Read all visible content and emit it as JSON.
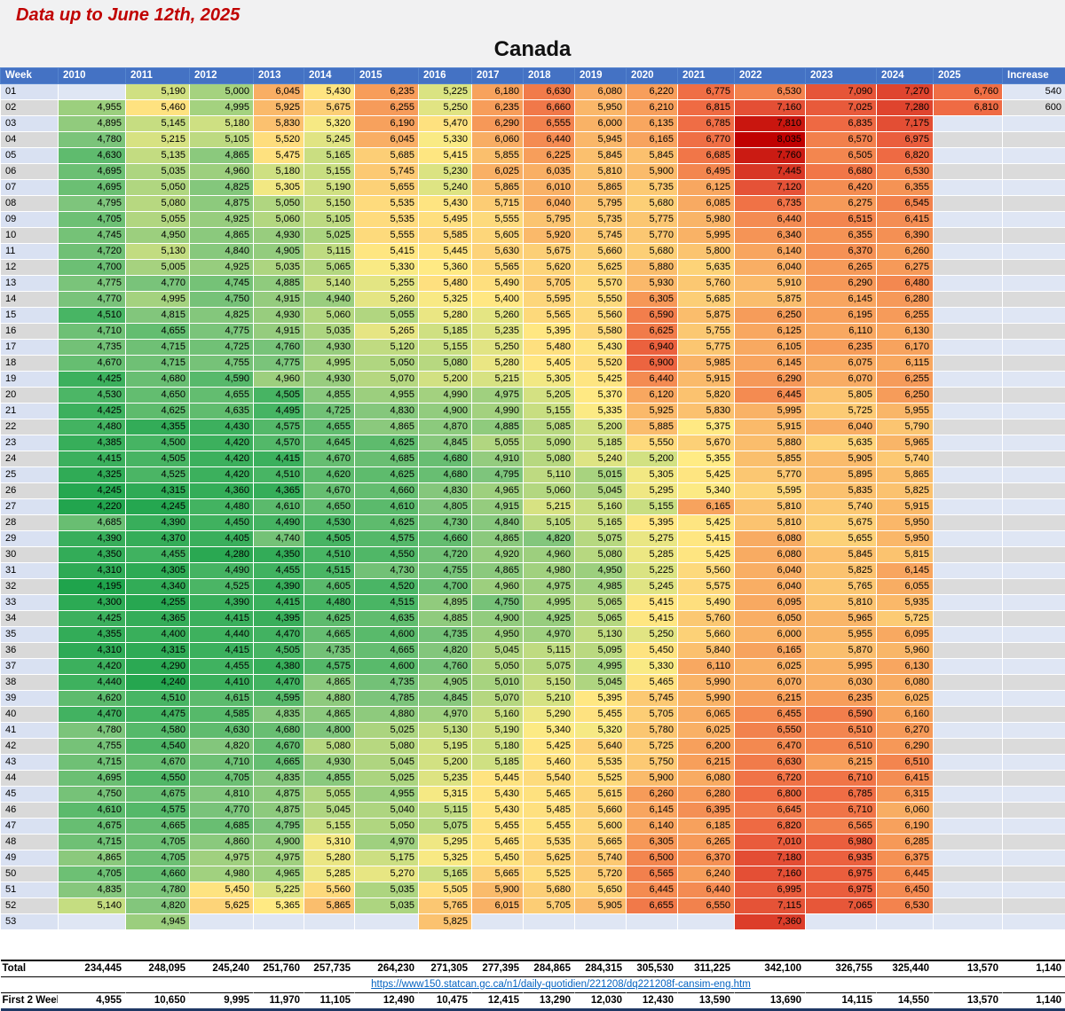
{
  "header": {
    "note": "Data up to June 12th, 2025",
    "title": "Canada"
  },
  "source_link": {
    "text": "https://www150.statcan.gc.ca/n1/daily-quotidien/221208/dq221208f-cansim-eng.htm"
  },
  "colors": {
    "header_bg": "#4472C4",
    "header_text": "#FFFFFF",
    "note_text": "#C00000",
    "week_odd_bg": "#D9E1F2",
    "week_even_bg": "#D9D9D9",
    "blank_odd_bg": "#DFE6F4",
    "blank_even_bg": "#DBDBDB",
    "link_text": "#0563C1",
    "bottom_border": "#1F3864"
  },
  "chart_data": {
    "type": "heatmap",
    "title": "Canada",
    "note": "Data up to June 12th, 2025",
    "legend_position": "none",
    "grid": true,
    "columns": [
      "Week",
      "2010",
      "2011",
      "2012",
      "2013",
      "2014",
      "2015",
      "2016",
      "2017",
      "2018",
      "2019",
      "2020",
      "2021",
      "2022",
      "2023",
      "2024",
      "2025",
      "Increase"
    ],
    "weeks": [
      "01",
      "02",
      "03",
      "04",
      "05",
      "06",
      "07",
      "08",
      "09",
      "10",
      "11",
      "12",
      "13",
      "14",
      "15",
      "16",
      "17",
      "18",
      "19",
      "20",
      "21",
      "22",
      "23",
      "24",
      "25",
      "26",
      "27",
      "28",
      "29",
      "30",
      "31",
      "32",
      "33",
      "34",
      "35",
      "36",
      "37",
      "38",
      "39",
      "40",
      "41",
      "42",
      "43",
      "44",
      "45",
      "46",
      "47",
      "48",
      "49",
      "50",
      "51",
      "52",
      "53"
    ],
    "rows": [
      [
        null,
        5190,
        5000,
        6045,
        5430,
        6235,
        5225,
        6180,
        6630,
        6080,
        6220,
        6775,
        6530,
        7090,
        7270,
        6760,
        540
      ],
      [
        4955,
        5460,
        4995,
        5925,
        5675,
        6255,
        5250,
        6235,
        6660,
        5950,
        6210,
        6815,
        7160,
        7025,
        7280,
        6810,
        600
      ],
      [
        4895,
        5145,
        5180,
        5830,
        5320,
        6190,
        5470,
        6290,
        6555,
        6000,
        6135,
        6785,
        7810,
        6835,
        7175,
        null,
        null
      ],
      [
        4780,
        5215,
        5105,
        5520,
        5245,
        6045,
        5330,
        6060,
        6440,
        5945,
        6165,
        6770,
        8035,
        6570,
        6975,
        null,
        null
      ],
      [
        4630,
        5135,
        4865,
        5475,
        5165,
        5685,
        5415,
        5855,
        6225,
        5845,
        5845,
        6685,
        7760,
        6505,
        6820,
        null,
        null
      ],
      [
        4695,
        5035,
        4960,
        5180,
        5155,
        5745,
        5230,
        6025,
        6035,
        5810,
        5900,
        6495,
        7445,
        6680,
        6530,
        null,
        null
      ],
      [
        4695,
        5050,
        4825,
        5305,
        5190,
        5655,
        5240,
        5865,
        6010,
        5865,
        5735,
        6125,
        7120,
        6420,
        6355,
        null,
        null
      ],
      [
        4795,
        5080,
        4875,
        5050,
        5150,
        5535,
        5430,
        5715,
        6040,
        5795,
        5680,
        6085,
        6735,
        6275,
        6545,
        null,
        null
      ],
      [
        4705,
        5055,
        4925,
        5060,
        5105,
        5535,
        5495,
        5555,
        5795,
        5735,
        5775,
        5980,
        6440,
        6515,
        6415,
        null,
        null
      ],
      [
        4745,
        4950,
        4865,
        4930,
        5025,
        5555,
        5585,
        5605,
        5920,
        5745,
        5770,
        5995,
        6340,
        6355,
        6390,
        null,
        null
      ],
      [
        4720,
        5130,
        4840,
        4905,
        5115,
        5415,
        5445,
        5630,
        5675,
        5660,
        5680,
        5800,
        6140,
        6370,
        6260,
        null,
        null
      ],
      [
        4700,
        5005,
        4925,
        5035,
        5065,
        5330,
        5360,
        5565,
        5620,
        5625,
        5880,
        5635,
        6040,
        6265,
        6275,
        null,
        null
      ],
      [
        4775,
        4770,
        4745,
        4885,
        5140,
        5255,
        5480,
        5490,
        5705,
        5570,
        5930,
        5760,
        5910,
        6290,
        6480,
        null,
        null
      ],
      [
        4770,
        4995,
        4750,
        4915,
        4940,
        5260,
        5325,
        5400,
        5595,
        5550,
        6305,
        5685,
        5875,
        6145,
        6280,
        null,
        null
      ],
      [
        4510,
        4815,
        4825,
        4930,
        5060,
        5055,
        5280,
        5260,
        5565,
        5560,
        6590,
        5875,
        6250,
        6195,
        6255,
        null,
        null
      ],
      [
        4710,
        4655,
        4775,
        4915,
        5035,
        5265,
        5185,
        5235,
        5395,
        5580,
        6625,
        5755,
        6125,
        6110,
        6130,
        null,
        null
      ],
      [
        4735,
        4715,
        4725,
        4760,
        4930,
        5120,
        5155,
        5250,
        5480,
        5430,
        6940,
        5775,
        6105,
        6235,
        6170,
        null,
        null
      ],
      [
        4670,
        4715,
        4755,
        4775,
        4995,
        5050,
        5080,
        5280,
        5405,
        5520,
        6900,
        5985,
        6145,
        6075,
        6115,
        null,
        null
      ],
      [
        4425,
        4680,
        4590,
        4960,
        4930,
        5070,
        5200,
        5215,
        5305,
        5425,
        6440,
        5915,
        6290,
        6070,
        6255,
        null,
        null
      ],
      [
        4530,
        4650,
        4655,
        4505,
        4855,
        4955,
        4990,
        4975,
        5205,
        5370,
        6120,
        5820,
        6445,
        5805,
        6250,
        null,
        null
      ],
      [
        4425,
        4625,
        4635,
        4495,
        4725,
        4830,
        4900,
        4990,
        5155,
        5335,
        5925,
        5830,
        5995,
        5725,
        5955,
        null,
        null
      ],
      [
        4480,
        4355,
        4430,
        4575,
        4655,
        4865,
        4870,
        4885,
        5085,
        5200,
        5885,
        5375,
        5915,
        6040,
        5790,
        null,
        null
      ],
      [
        4385,
        4500,
        4420,
        4570,
        4645,
        4625,
        4845,
        5055,
        5090,
        5185,
        5550,
        5670,
        5880,
        5635,
        5965,
        null,
        null
      ],
      [
        4415,
        4505,
        4420,
        4415,
        4670,
        4685,
        4680,
        4910,
        5080,
        5240,
        5200,
        5355,
        5855,
        5905,
        5740,
        null,
        null
      ],
      [
        4325,
        4525,
        4420,
        4510,
        4620,
        4625,
        4680,
        4795,
        5110,
        5015,
        5305,
        5425,
        5770,
        5895,
        5865,
        null,
        null
      ],
      [
        4245,
        4315,
        4360,
        4365,
        4670,
        4660,
        4830,
        4965,
        5060,
        5045,
        5295,
        5340,
        5595,
        5835,
        5825,
        null,
        null
      ],
      [
        4220,
        4245,
        4480,
        4610,
        4650,
        4610,
        4805,
        4915,
        5215,
        5160,
        5155,
        6165,
        5810,
        5740,
        5915,
        null,
        null
      ],
      [
        4685,
        4390,
        4450,
        4490,
        4530,
        4625,
        4730,
        4840,
        5105,
        5165,
        5395,
        5425,
        5810,
        5675,
        5950,
        null,
        null
      ],
      [
        4390,
        4370,
        4405,
        4740,
        4505,
        4575,
        4660,
        4865,
        4820,
        5075,
        5275,
        5415,
        6080,
        5655,
        5950,
        null,
        null
      ],
      [
        4350,
        4455,
        4280,
        4350,
        4510,
        4550,
        4720,
        4920,
        4960,
        5080,
        5285,
        5425,
        6080,
        5845,
        5815,
        null,
        null
      ],
      [
        4310,
        4305,
        4490,
        4455,
        4515,
        4730,
        4755,
        4865,
        4980,
        4950,
        5225,
        5560,
        6040,
        5825,
        6145,
        null,
        null
      ],
      [
        4195,
        4340,
        4525,
        4390,
        4605,
        4520,
        4700,
        4960,
        4975,
        4985,
        5245,
        5575,
        6040,
        5765,
        6055,
        null,
        null
      ],
      [
        4300,
        4255,
        4390,
        4415,
        4480,
        4515,
        4895,
        4750,
        4995,
        5065,
        5415,
        5490,
        6095,
        5810,
        5935,
        null,
        null
      ],
      [
        4425,
        4365,
        4415,
        4395,
        4625,
        4635,
        4885,
        4900,
        4925,
        5065,
        5415,
        5760,
        6050,
        5965,
        5725,
        null,
        null
      ],
      [
        4355,
        4400,
        4440,
        4470,
        4665,
        4600,
        4735,
        4950,
        4970,
        5130,
        5250,
        5660,
        6000,
        5955,
        6095,
        null,
        null
      ],
      [
        4310,
        4315,
        4415,
        4505,
        4735,
        4665,
        4820,
        5045,
        5115,
        5095,
        5450,
        5840,
        6165,
        5870,
        5960,
        null,
        null
      ],
      [
        4420,
        4290,
        4455,
        4380,
        4575,
        4600,
        4760,
        5050,
        5075,
        4995,
        5330,
        6110,
        6025,
        5995,
        6130,
        null,
        null
      ],
      [
        4440,
        4240,
        4410,
        4470,
        4865,
        4735,
        4905,
        5010,
        5150,
        5045,
        5465,
        5990,
        6070,
        6030,
        6080,
        null,
        null
      ],
      [
        4620,
        4510,
        4615,
        4595,
        4880,
        4785,
        4845,
        5070,
        5210,
        5395,
        5745,
        5990,
        6215,
        6235,
        6025,
        null,
        null
      ],
      [
        4470,
        4475,
        4585,
        4835,
        4865,
        4880,
        4970,
        5160,
        5290,
        5455,
        5705,
        6065,
        6455,
        6590,
        6160,
        null,
        null
      ],
      [
        4780,
        4580,
        4630,
        4680,
        4800,
        5025,
        5130,
        5190,
        5340,
        5320,
        5780,
        6025,
        6550,
        6510,
        6270,
        null,
        null
      ],
      [
        4755,
        4540,
        4820,
        4670,
        5080,
        5080,
        5195,
        5180,
        5425,
        5640,
        5725,
        6200,
        6470,
        6510,
        6290,
        null,
        null
      ],
      [
        4715,
        4670,
        4710,
        4665,
        4930,
        5045,
        5200,
        5185,
        5460,
        5535,
        5750,
        6215,
        6630,
        6215,
        6510,
        null,
        null
      ],
      [
        4695,
        4550,
        4705,
        4835,
        4855,
        5025,
        5235,
        5445,
        5540,
        5525,
        5900,
        6080,
        6720,
        6710,
        6415,
        null,
        null
      ],
      [
        4750,
        4675,
        4810,
        4875,
        5055,
        4955,
        5315,
        5430,
        5465,
        5615,
        6260,
        6280,
        6800,
        6785,
        6315,
        null,
        null
      ],
      [
        4610,
        4575,
        4770,
        4875,
        5045,
        5040,
        5115,
        5430,
        5485,
        5660,
        6145,
        6395,
        6645,
        6710,
        6060,
        null,
        null
      ],
      [
        4675,
        4665,
        4685,
        4795,
        5155,
        5050,
        5075,
        5455,
        5455,
        5600,
        6140,
        6185,
        6820,
        6565,
        6190,
        null,
        null
      ],
      [
        4715,
        4705,
        4860,
        4900,
        5310,
        4970,
        5295,
        5465,
        5535,
        5665,
        6305,
        6265,
        7010,
        6980,
        6285,
        null,
        null
      ],
      [
        4865,
        4705,
        4975,
        4975,
        5280,
        5175,
        5325,
        5450,
        5625,
        5740,
        6500,
        6370,
        7180,
        6935,
        6375,
        null,
        null
      ],
      [
        4705,
        4660,
        4980,
        4965,
        5285,
        5270,
        5165,
        5665,
        5525,
        5720,
        6565,
        6240,
        7160,
        6975,
        6445,
        null,
        null
      ],
      [
        4835,
        4780,
        5450,
        5225,
        5560,
        5035,
        5505,
        5900,
        5680,
        5650,
        6445,
        6440,
        6995,
        6975,
        6450,
        null,
        null
      ],
      [
        5140,
        4820,
        5625,
        5365,
        5865,
        5035,
        5765,
        6015,
        5705,
        5905,
        6655,
        6550,
        7115,
        7065,
        6530,
        null,
        null
      ],
      [
        null,
        4945,
        null,
        null,
        null,
        null,
        5825,
        null,
        null,
        null,
        null,
        null,
        7360,
        null,
        null,
        null,
        null
      ]
    ],
    "totals": {
      "label": "Total",
      "values": [
        234445,
        248095,
        245240,
        251760,
        257735,
        264230,
        271305,
        277395,
        284865,
        284315,
        305530,
        311225,
        342100,
        326755,
        325440,
        13570,
        1140
      ]
    },
    "first_two_weeks": {
      "label": "First 2 Weeks",
      "values": [
        4955,
        10650,
        9995,
        11970,
        11105,
        12490,
        10475,
        12415,
        13290,
        12030,
        12430,
        13590,
        13690,
        14115,
        14550,
        13570,
        1140
      ]
    },
    "color_scale": {
      "min": 4195,
      "max": 8035,
      "stops": [
        [
          4195,
          "#1FA44C"
        ],
        [
          4500,
          "#46B463"
        ],
        [
          4800,
          "#7FC57C"
        ],
        [
          5000,
          "#A5D27F"
        ],
        [
          5200,
          "#D2E182"
        ],
        [
          5350,
          "#FFEB84"
        ],
        [
          5600,
          "#FDD67A"
        ],
        [
          5900,
          "#FABB6B"
        ],
        [
          6200,
          "#F7A05C"
        ],
        [
          6500,
          "#F3864F"
        ],
        [
          6800,
          "#EF6C44"
        ],
        [
          7100,
          "#E65438"
        ],
        [
          7400,
          "#DA3A28"
        ],
        [
          7700,
          "#CE2117"
        ],
        [
          8035,
          "#C00000"
        ]
      ]
    }
  }
}
